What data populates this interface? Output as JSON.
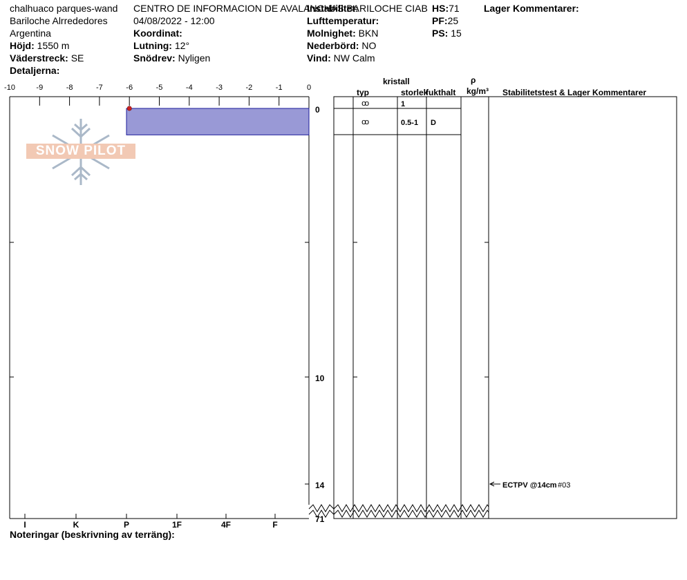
{
  "header": {
    "location": "chalhuaco parques-wand",
    "area": "Bariloche Alrrededores",
    "country": "Argentina",
    "elevation_label": "Höjd:",
    "elevation_value": "1550 m",
    "aspect_label": "Väderstreck:",
    "aspect_value": "SE",
    "details_label": "Detaljerna:",
    "organization": "CENTRO DE INFORMACION DE AVALANCHAS BARILOCHE CIAB",
    "datetime": "04/08/2022 - 12:00",
    "coord_label": "Koordinat:",
    "slope_label": "Lutning:",
    "slope_value": "12°",
    "wind_loading_label": "Snödrev:",
    "wind_loading_value": "Nyligen",
    "stability_label": "Instabilitet:",
    "air_temp_label": "Lufttemperatur:",
    "sky_label": "Molnighet:",
    "sky_value": "BKN",
    "precip_label": "Nederbörd:",
    "precip_value": "NO",
    "wind_label": "Vind:",
    "wind_value": "NW Calm",
    "hs_label": "HS:",
    "hs_value": "71",
    "pf_label": "PF:",
    "pf_value": "25",
    "ps_label": "PS:",
    "ps_value": "15",
    "layer_comments_label": "Lager Kommentarer:"
  },
  "logo_text": "SNOW PILOT",
  "table_headers": {
    "crystal": "kristall",
    "type": "typ",
    "size": "storlek",
    "moisture": "fukthalt",
    "rho": "ρ",
    "density_unit": "kg/m³",
    "stability": "Stabilitetstest & Lager Kommentarer"
  },
  "notes_label": "Noteringar (beskrivning av terräng):",
  "colors": {
    "layer_fill": "#9999d6",
    "layer_stroke": "#1a1a99",
    "temp_point": "#cc2222",
    "logo": "#aab8c8"
  },
  "chart_data": {
    "type": "snow-profile",
    "temperature_axis": {
      "ticks": [
        -10,
        -9,
        -8,
        -7,
        -6,
        -5,
        -4,
        -3,
        -2,
        -1,
        0
      ],
      "range": [
        -10,
        0
      ]
    },
    "hardness_axis": {
      "ticks": [
        "I",
        "K",
        "P",
        "1F",
        "4F",
        "F"
      ]
    },
    "depth_axis": {
      "labels": [
        "0",
        "10",
        "14",
        "71"
      ]
    },
    "temperature_points": [
      {
        "depth_cm": 0,
        "temp_c": -6
      }
    ],
    "layers": [
      {
        "top_cm": 0,
        "bottom_cm": 1,
        "hardness": "P",
        "grain_type": "ꝏ",
        "grain_size": "1",
        "moisture": ""
      },
      {
        "top_cm": 1,
        "bottom_cm": 1.5,
        "hardness": "P",
        "grain_type": "ꝏ",
        "grain_size": "0.5-1",
        "moisture": "D"
      }
    ],
    "stability_tests": [
      {
        "depth_cm": 14,
        "label": "ECTPV @14cm",
        "number": "#03"
      }
    ]
  }
}
